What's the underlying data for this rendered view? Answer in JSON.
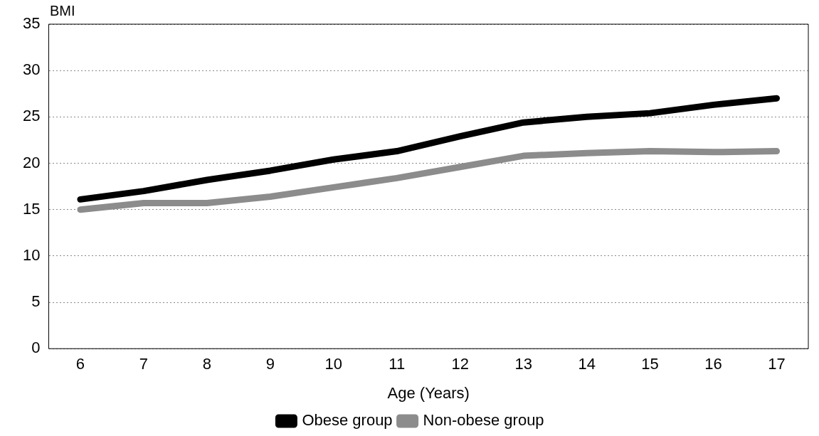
{
  "chart_data": {
    "type": "line",
    "ylabel": "BMI",
    "xlabel": "Age (Years)",
    "categories": [
      "6",
      "7",
      "8",
      "9",
      "10",
      "11",
      "12",
      "13",
      "14",
      "15",
      "16",
      "17"
    ],
    "series": [
      {
        "name": "Obese group",
        "color": "#000000",
        "values": [
          16.1,
          17.0,
          18.2,
          19.2,
          20.4,
          21.3,
          22.9,
          24.4,
          25.0,
          25.4,
          26.3,
          27.0
        ]
      },
      {
        "name": "Non-obese group",
        "color": "#8c8c8c",
        "values": [
          15.0,
          15.7,
          15.7,
          16.4,
          17.4,
          18.4,
          19.6,
          20.8,
          21.1,
          21.3,
          21.2,
          21.3
        ]
      }
    ],
    "ylim": [
      0,
      35
    ],
    "yticks": [
      0,
      5,
      10,
      15,
      20,
      25,
      30,
      35
    ],
    "grid": "y",
    "legend": "bottom",
    "marker": "none",
    "line_style": "solid"
  }
}
